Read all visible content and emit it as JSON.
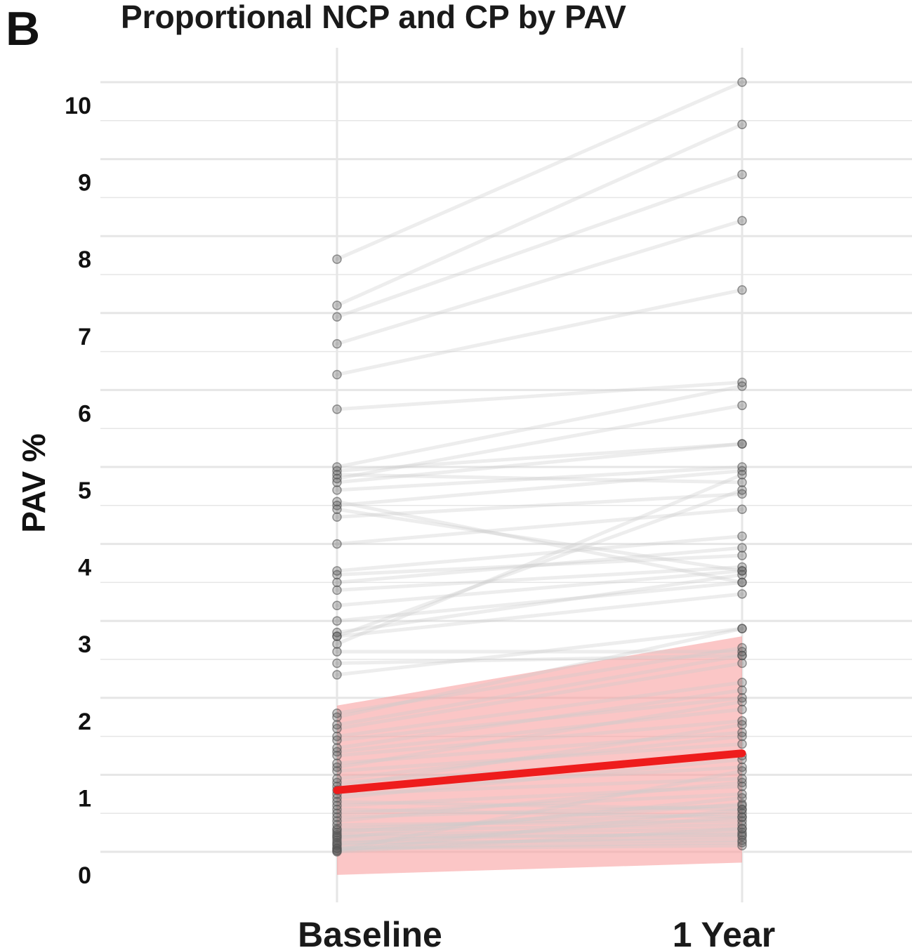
{
  "panel_label": "B",
  "chart_data": {
    "type": "line",
    "title": "Proportional NCP and CP by PAV",
    "xlabel": "",
    "ylabel": "PAV %",
    "categories": [
      "Baseline",
      "1 Year"
    ],
    "y_ticks": [
      "0",
      "1",
      "2",
      "3",
      "4",
      "5",
      "6",
      "7",
      "8",
      "9",
      "10"
    ],
    "ylim": [
      -0.3,
      10.4
    ],
    "grid": true,
    "legend": "none",
    "colors": {
      "trend_line": "#ee1c1c",
      "confidence_band": "#f9a0a0",
      "subject_line": "#cccccc",
      "points": "#555555",
      "grid": "#e6e6e6"
    },
    "trend": {
      "name": "",
      "values": [
        0.8,
        1.28
      ]
    },
    "confidence_band": {
      "lower": [
        -0.3,
        -0.14
      ],
      "upper": [
        1.9,
        2.8
      ]
    },
    "subjects": [
      [
        7.7,
        10.0
      ],
      [
        7.1,
        9.45
      ],
      [
        6.95,
        8.8
      ],
      [
        6.6,
        8.2
      ],
      [
        6.2,
        7.3
      ],
      [
        5.75,
        6.1
      ],
      [
        5.0,
        6.05
      ],
      [
        4.85,
        5.8
      ],
      [
        4.95,
        5.3
      ],
      [
        4.8,
        5.3
      ],
      [
        4.7,
        5.0
      ],
      [
        4.9,
        4.8
      ],
      [
        4.5,
        4.95
      ],
      [
        4.35,
        4.65
      ],
      [
        4.0,
        4.45
      ],
      [
        4.55,
        3.5
      ],
      [
        4.45,
        3.65
      ],
      [
        3.65,
        4.1
      ],
      [
        3.6,
        3.85
      ],
      [
        3.5,
        3.95
      ],
      [
        3.4,
        3.7
      ],
      [
        3.2,
        3.65
      ],
      [
        3.0,
        3.5
      ],
      [
        2.85,
        3.6
      ],
      [
        2.8,
        3.35
      ],
      [
        2.8,
        4.7
      ],
      [
        2.7,
        4.9
      ],
      [
        2.6,
        2.6
      ],
      [
        2.45,
        2.55
      ],
      [
        2.3,
        2.9
      ],
      [
        1.75,
        2.9
      ],
      [
        1.8,
        2.65
      ],
      [
        1.65,
        2.55
      ],
      [
        1.6,
        2.45
      ],
      [
        1.5,
        2.2
      ],
      [
        1.45,
        2.0
      ],
      [
        1.35,
        2.1
      ],
      [
        1.3,
        1.85
      ],
      [
        1.25,
        1.7
      ],
      [
        1.15,
        1.55
      ],
      [
        1.1,
        1.95
      ],
      [
        1.05,
        1.4
      ],
      [
        0.95,
        1.5
      ],
      [
        0.9,
        1.25
      ],
      [
        0.85,
        1.65
      ],
      [
        0.8,
        1.1
      ],
      [
        0.75,
        0.95
      ],
      [
        0.7,
        1.2
      ],
      [
        0.65,
        0.55
      ],
      [
        0.6,
        0.85
      ],
      [
        0.55,
        0.45
      ],
      [
        0.5,
        0.75
      ],
      [
        0.45,
        0.6
      ],
      [
        0.4,
        0.9
      ],
      [
        0.35,
        0.4
      ],
      [
        0.3,
        0.5
      ],
      [
        0.28,
        0.35
      ],
      [
        0.25,
        0.62
      ],
      [
        0.22,
        0.3
      ],
      [
        0.2,
        0.22
      ],
      [
        0.18,
        0.7
      ],
      [
        0.15,
        0.25
      ],
      [
        0.12,
        0.15
      ],
      [
        0.1,
        0.45
      ],
      [
        0.08,
        0.2
      ],
      [
        0.05,
        0.12
      ],
      [
        0.04,
        0.08
      ],
      [
        0.02,
        1.05
      ],
      [
        0.01,
        0.55
      ],
      [
        0.0,
        0.3
      ]
    ]
  }
}
